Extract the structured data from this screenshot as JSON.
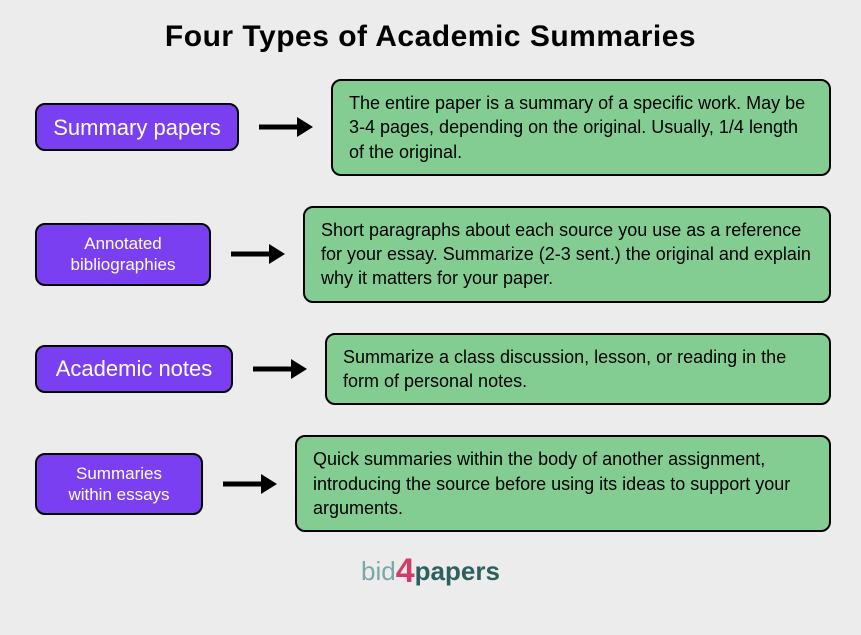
{
  "title": "Four Types of Academic Summaries",
  "colors": {
    "background": "#ececec",
    "label_fill": "#7b3ff2",
    "label_text": "#ffffff",
    "desc_fill": "#83cd93",
    "desc_text": "#000000",
    "border": "#000000",
    "arrow": "#000000"
  },
  "rows": [
    {
      "label": "Summary papers",
      "label_fontsize": 22,
      "label_width": 204,
      "label_height": 48,
      "desc": "The entire paper is a summary of a specific work. May be 3-4 pages, depending on the original. Usually, 1/4 length of the original."
    },
    {
      "label": "Annotated\nbibliographies",
      "label_fontsize": 17,
      "label_width": 176,
      "label_height": 56,
      "desc": "Short paragraphs about each source you use as a reference for your essay. Summarize (2-3 sent.) the original and explain why it matters for your paper."
    },
    {
      "label": "Academic notes",
      "label_fontsize": 22,
      "label_width": 198,
      "label_height": 48,
      "desc": "Summarize a class discussion, lesson, or reading in the form of personal notes."
    },
    {
      "label": "Summaries\nwithin essays",
      "label_fontsize": 17,
      "label_width": 168,
      "label_height": 56,
      "desc": "Quick summaries within the body of another assignment, introducing the source before using its ideas to support your arguments."
    }
  ],
  "logo": {
    "part1": "bid",
    "part2": "4",
    "part3": "papers"
  }
}
